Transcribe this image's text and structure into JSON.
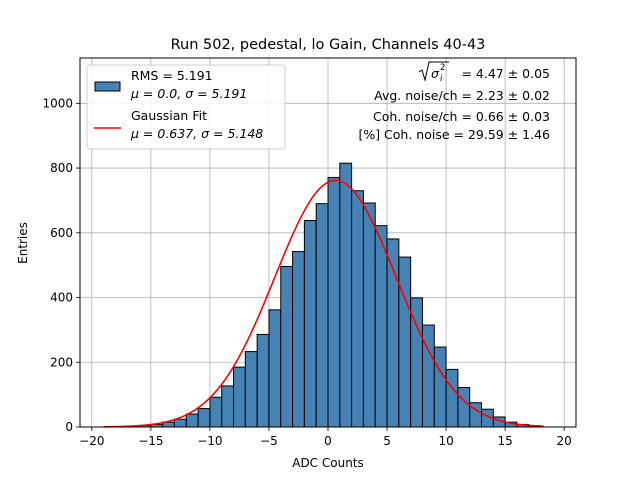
{
  "chart_data": {
    "type": "bar",
    "title": "Run 502, pedestal, lo Gain, Channels 40-43",
    "xlabel": "ADC Counts",
    "ylabel": "Entries",
    "xlim": [
      -21,
      21
    ],
    "ylim": [
      0,
      1140
    ],
    "xticks": [
      -20,
      -15,
      -10,
      -5,
      0,
      5,
      10,
      15,
      20
    ],
    "yticks": [
      0,
      200,
      400,
      600,
      800,
      1000
    ],
    "grid": true,
    "bin_width": 1,
    "histogram": {
      "bin_left_edges": [
        -17,
        -16,
        -15,
        -14,
        -13,
        -12,
        -11,
        -10,
        -9,
        -8,
        -7,
        -6,
        -5,
        -4,
        -3,
        -2,
        -1,
        0,
        1,
        2,
        3,
        4,
        5,
        6,
        7,
        8,
        9,
        10,
        11,
        12,
        13,
        14,
        15,
        16,
        17
      ],
      "counts": [
        2,
        5,
        8,
        15,
        24,
        40,
        57,
        92,
        127,
        185,
        233,
        286,
        362,
        496,
        542,
        638,
        690,
        771,
        815,
        730,
        692,
        622,
        581,
        525,
        399,
        315,
        247,
        178,
        122,
        75,
        55,
        31,
        15,
        8,
        4
      ],
      "fill_color": "#4682b4",
      "edge_color": "#000000"
    },
    "gaussian_fit": {
      "color": "#ff0000",
      "x_range": [
        -19,
        18.3
      ],
      "mu": 0.637,
      "sigma": 5.148,
      "amplitude": 762
    },
    "legend": {
      "placement": "top-left",
      "entries": [
        {
          "line1": "RMS = 5.191",
          "line2": "μ = 0.0, σ = 5.191"
        },
        {
          "line1": "Gaussian Fit",
          "line2": "μ = 0.637, σ = 5.148"
        }
      ]
    },
    "annotations": {
      "placement": "top-right",
      "line1_value": " = 4.47 ± 0.05",
      "line2": "Avg. noise/ch = 2.23 ± 0.02",
      "line3": "Coh. noise/ch = 0.66 ± 0.03",
      "line4": "[%] Coh. noise = 29.59 ± 1.46"
    }
  }
}
